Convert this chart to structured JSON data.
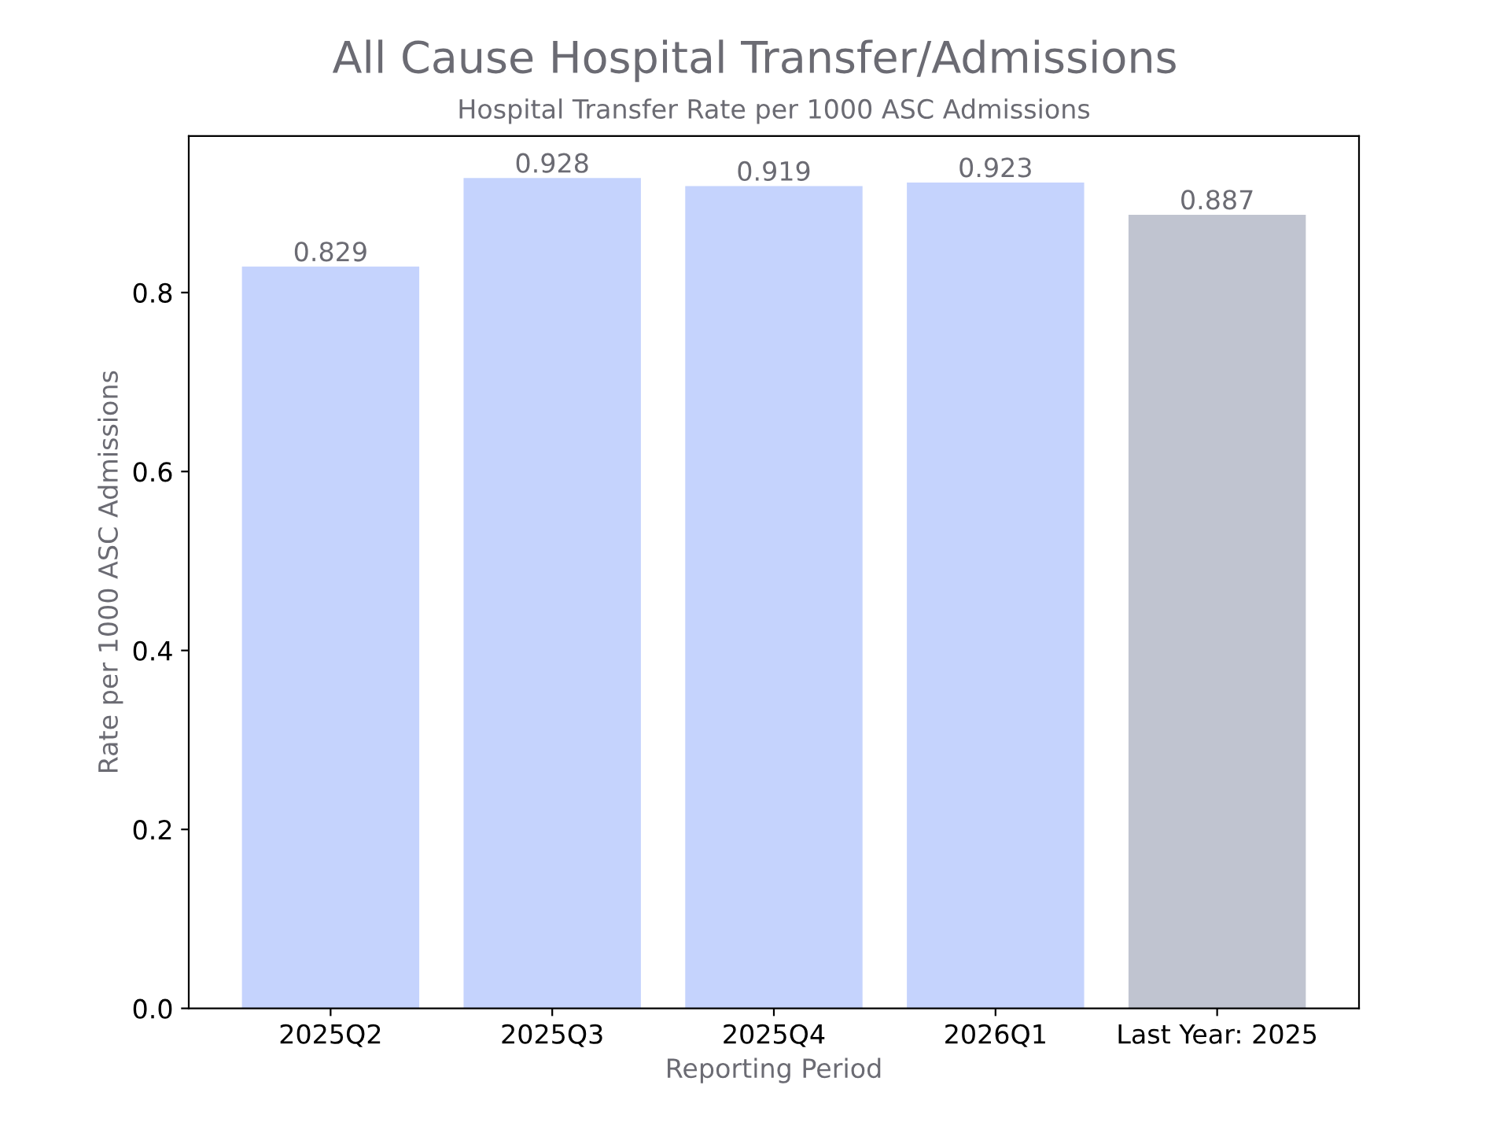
{
  "chart_data": {
    "type": "bar",
    "title": "All Cause Hospital Transfer/Admissions",
    "subtitle": "Hospital Transfer Rate per 1000 ASC Admissions",
    "xlabel": "Reporting Period",
    "ylabel": "Rate per 1000 ASC Admissions",
    "categories": [
      "2025Q2",
      "2025Q3",
      "2025Q4",
      "2026Q1",
      "Last Year: 2025"
    ],
    "values": [
      0.829,
      0.928,
      0.919,
      0.923,
      0.887
    ],
    "colors": [
      "#c5d3fd",
      "#c5d3fd",
      "#c5d3fd",
      "#c5d3fd",
      "#c0c4d0"
    ],
    "ylim": [
      0,
      0.975
    ],
    "yticks": [
      {
        "value": 0,
        "label": "0.0"
      },
      0.2,
      0.4,
      0.6,
      0.8
    ],
    "data_labels": true,
    "grid": false,
    "legend": false
  }
}
